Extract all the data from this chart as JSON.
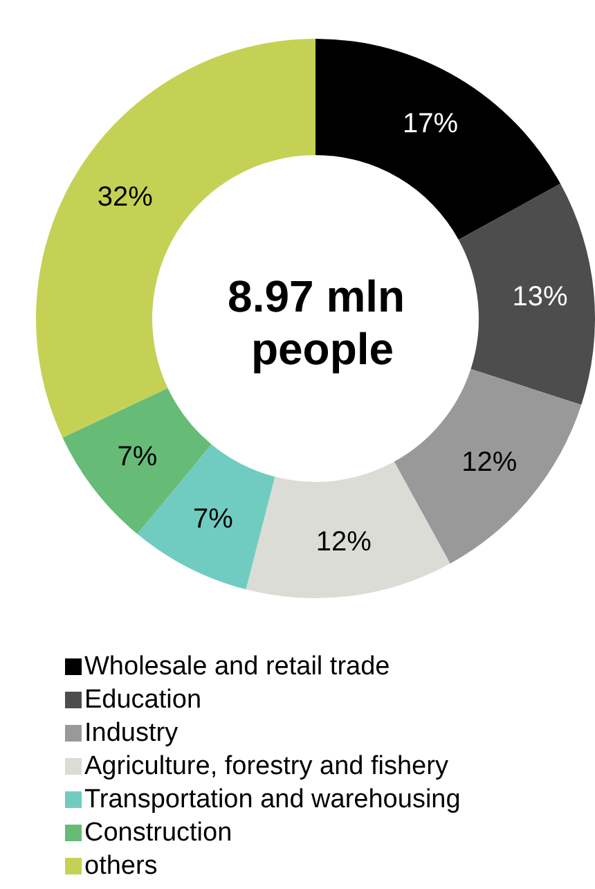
{
  "chart_data": {
    "type": "donut",
    "title": "8.97 mln people",
    "categories": [
      "Wholesale and retail trade",
      "Education",
      "Industry",
      "Agriculture, forestry and fishery",
      "Transportation and warehousing",
      "Construction",
      "others"
    ],
    "values": [
      17,
      13,
      12,
      12,
      7,
      7,
      32
    ],
    "value_labels": [
      "17%",
      "13%",
      "12%",
      "12%",
      "7%",
      "7%",
      "32%"
    ],
    "colors": [
      "#000000",
      "#4d4d4d",
      "#999999",
      "#dcdcd6",
      "#70ccc0",
      "#66bb77",
      "#c5d155"
    ],
    "legend": "bottom left"
  }
}
